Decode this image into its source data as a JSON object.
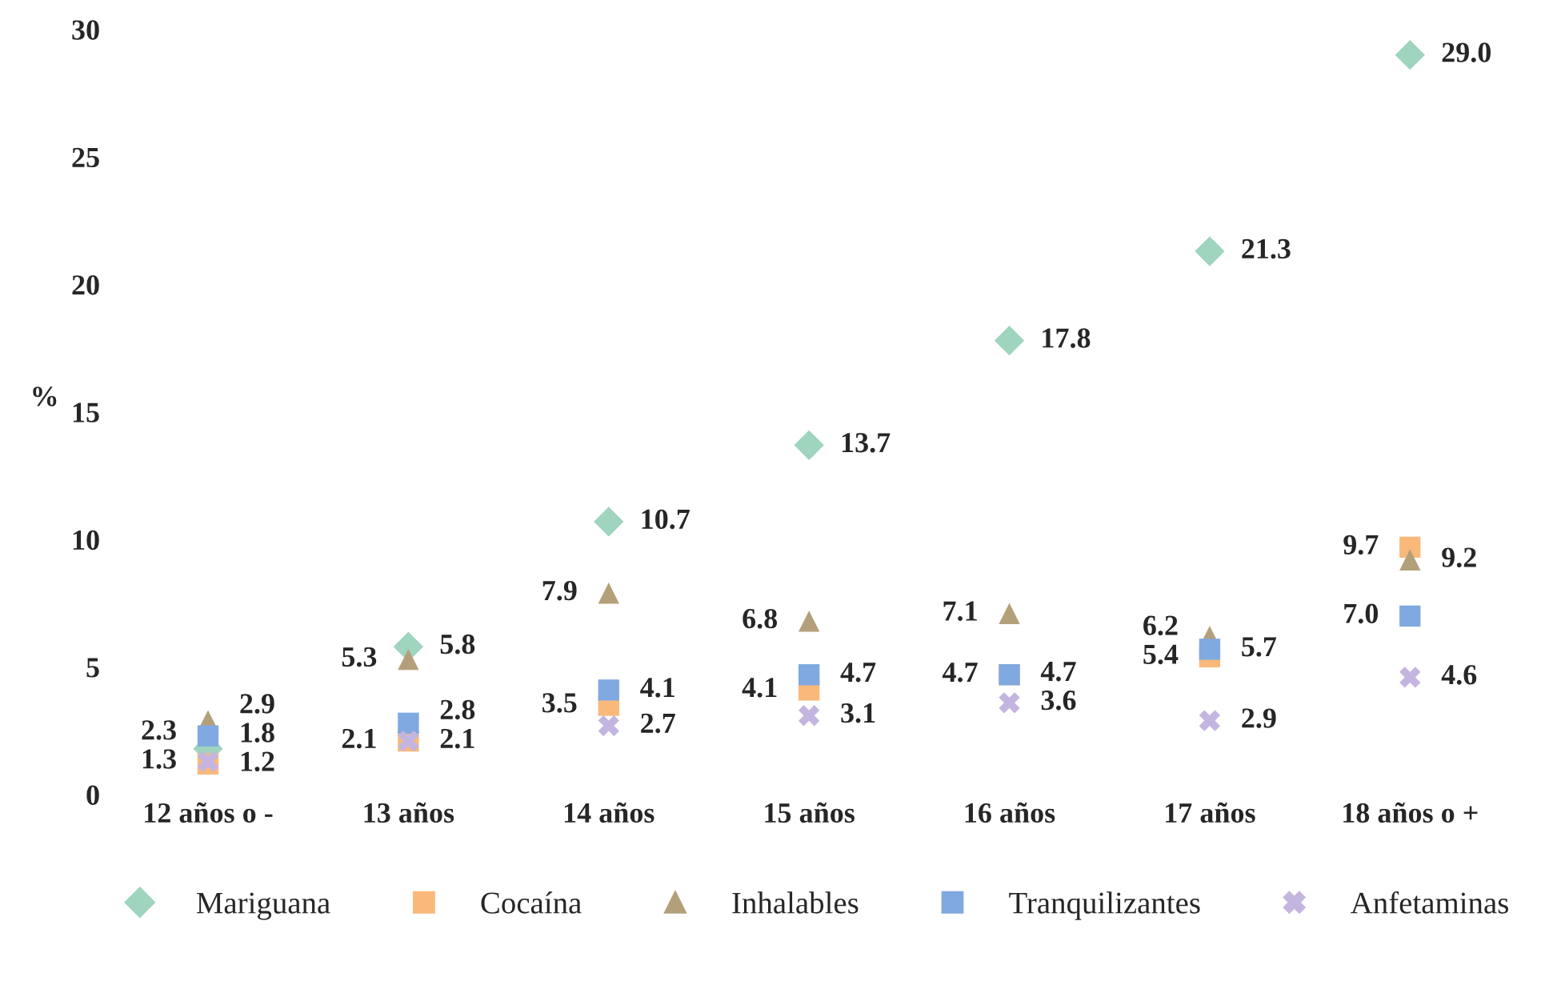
{
  "chart_data": {
    "type": "scatter",
    "ylabel": "%",
    "categories": [
      "12 años o -",
      "13 años",
      "14 años",
      "15 años",
      "16 años",
      "17 años",
      "18 años o +"
    ],
    "series": [
      {
        "name": "Mariguana",
        "color": "#9fd4bf",
        "marker": "diamond",
        "values": [
          1.8,
          5.8,
          10.7,
          13.7,
          17.8,
          21.3,
          29.0
        ],
        "value_labels": [
          "1.8",
          "5.8",
          "10.7",
          "13.7",
          "17.8",
          "21.3",
          "29.0"
        ]
      },
      {
        "name": "Cocaína",
        "color": "#f9b97a",
        "marker": "square",
        "values": [
          1.2,
          2.1,
          3.5,
          4.1,
          4.7,
          5.4,
          9.7
        ],
        "value_labels": [
          "1.2",
          "2.1",
          "3.5",
          "4.1",
          "4.7",
          "5.4",
          "9.7"
        ]
      },
      {
        "name": "Inhalables",
        "color": "#b3a07a",
        "marker": "triangle",
        "values": [
          2.9,
          5.3,
          7.9,
          6.8,
          7.1,
          6.2,
          9.2
        ],
        "value_labels": [
          "2.9",
          "5.3",
          "7.9",
          "6.8",
          "7.1",
          "6.2",
          "9.2"
        ]
      },
      {
        "name": "Tranquilizantes",
        "color": "#7fa9e0",
        "marker": "square",
        "values": [
          2.3,
          2.8,
          4.1,
          4.7,
          4.7,
          5.7,
          7.0
        ],
        "value_labels": [
          "2.3",
          "2.8",
          "4.1",
          "4.7",
          "4.7",
          "5.7",
          "7.0"
        ]
      },
      {
        "name": "Anfetaminas",
        "color": "#c4b5e0",
        "marker": "cross",
        "values": [
          1.3,
          2.1,
          2.7,
          3.1,
          3.6,
          2.9,
          4.6
        ],
        "value_labels": [
          "1.3",
          "2.1",
          "2.7",
          "3.1",
          "3.6",
          "2.9",
          "4.6"
        ]
      }
    ],
    "ylim": [
      0,
      30
    ],
    "yticks": [
      0,
      5,
      10,
      15,
      20,
      25,
      30
    ],
    "grid": false,
    "legend": "bottom"
  }
}
